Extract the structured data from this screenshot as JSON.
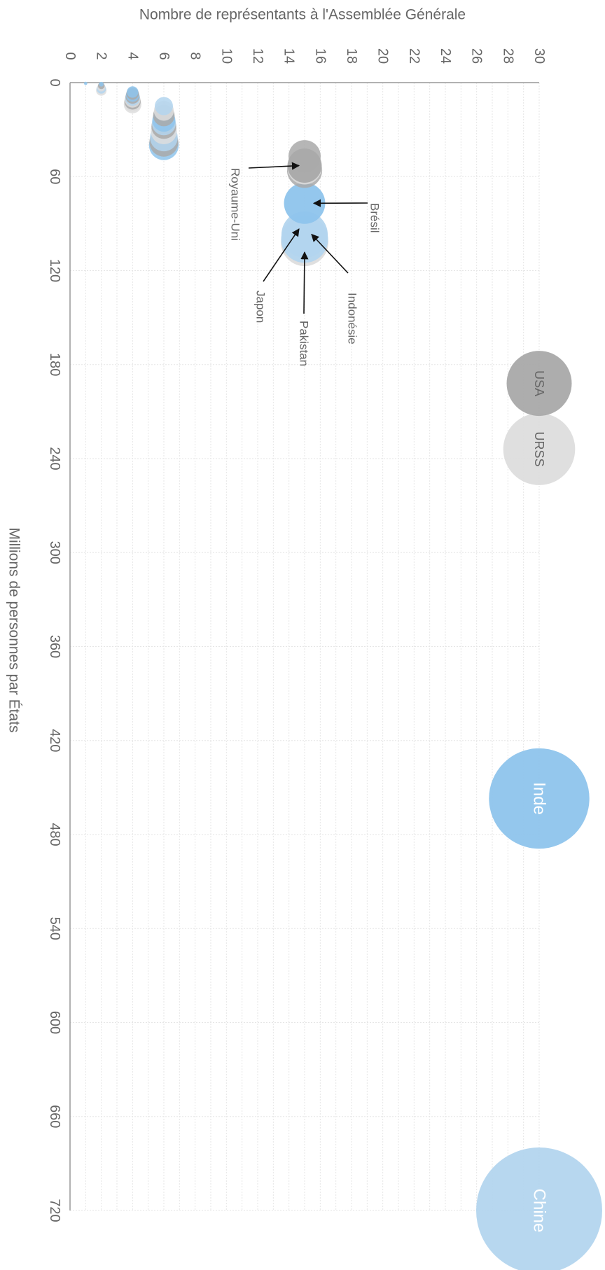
{
  "chart_data": {
    "type": "scatter",
    "orientation": "rotated-90-clockwise",
    "x_label": "Nombre de représentants à l'Assemblée Générale",
    "y_label": "Millions de personnes par États",
    "x_range": [
      0,
      30
    ],
    "y_range": [
      0,
      720
    ],
    "x_ticks": [
      "0",
      "2",
      "4",
      "6",
      "8",
      "10",
      "12",
      "14",
      "16",
      "18",
      "20",
      "22",
      "24",
      "26",
      "28",
      "30"
    ],
    "y_ticks": [
      "0",
      "60",
      "120",
      "180",
      "240",
      "300",
      "360",
      "420",
      "480",
      "540",
      "600",
      "660",
      "720"
    ],
    "grid": true,
    "colors": {
      "blue": "#8ec4ec",
      "light_blue": "#b3d5ee",
      "dark_grey": "#a9a9a9",
      "light_grey": "#dddddd",
      "grid": "#e6e6e6",
      "axis": "#999999"
    },
    "labeled_points": [
      {
        "label": "Chine",
        "representatives": 30,
        "population_millions": 720,
        "color": "light_blue"
      },
      {
        "label": "Inde",
        "representatives": 30,
        "population_millions": 457,
        "color": "blue"
      },
      {
        "label": "URSS",
        "representatives": 30,
        "population_millions": 234,
        "color": "light_grey"
      },
      {
        "label": "USA",
        "representatives": 30,
        "population_millions": 192,
        "color": "dark_grey"
      },
      {
        "label": "Indonésie",
        "representatives": 15,
        "population_millions": 100,
        "color": "light_blue"
      },
      {
        "label": "Pakistan",
        "representatives": 15,
        "population_millions": 102,
        "color": "light_grey"
      },
      {
        "label": "Japon",
        "representatives": 15,
        "population_millions": 97,
        "color": "light_blue"
      },
      {
        "label": "Brésil",
        "representatives": 15,
        "population_millions": 77,
        "color": "blue"
      },
      {
        "label": "Royaume-Uni",
        "representatives": 15,
        "population_millions": 53,
        "color": "dark_grey"
      }
    ],
    "other_points": [
      {
        "representatives": 15,
        "population_millions": 47,
        "color": "dark_grey"
      },
      {
        "representatives": 15,
        "population_millions": 54,
        "color": "light_grey"
      },
      {
        "representatives": 15,
        "population_millions": 56,
        "color": "dark_grey"
      },
      {
        "representatives": 6,
        "population_millions": 15,
        "color": "light_blue"
      },
      {
        "representatives": 6,
        "population_millions": 18,
        "color": "light_grey"
      },
      {
        "representatives": 6,
        "population_millions": 21,
        "color": "dark_grey"
      },
      {
        "representatives": 6,
        "population_millions": 24,
        "color": "blue"
      },
      {
        "representatives": 6,
        "population_millions": 26,
        "color": "light_blue"
      },
      {
        "representatives": 6,
        "population_millions": 28,
        "color": "dark_grey"
      },
      {
        "representatives": 6,
        "population_millions": 31,
        "color": "light_grey"
      },
      {
        "representatives": 6,
        "population_millions": 35,
        "color": "light_blue"
      },
      {
        "representatives": 6,
        "population_millions": 38,
        "color": "dark_grey"
      },
      {
        "representatives": 6,
        "population_millions": 40,
        "color": "blue"
      },
      {
        "representatives": 4,
        "population_millions": 6,
        "color": "blue"
      },
      {
        "representatives": 4,
        "population_millions": 7,
        "color": "dark_grey"
      },
      {
        "representatives": 4,
        "population_millions": 8,
        "color": "blue"
      },
      {
        "representatives": 4,
        "population_millions": 9,
        "color": "dark_grey"
      },
      {
        "representatives": 4,
        "population_millions": 10,
        "color": "light_blue"
      },
      {
        "representatives": 4,
        "population_millions": 11,
        "color": "light_grey"
      },
      {
        "representatives": 4,
        "population_millions": 12,
        "color": "dark_grey"
      },
      {
        "representatives": 4,
        "population_millions": 13,
        "color": "light_grey"
      },
      {
        "representatives": 4,
        "population_millions": 14,
        "color": "light_grey"
      },
      {
        "representatives": 2,
        "population_millions": 1,
        "color": "blue"
      },
      {
        "representatives": 2,
        "population_millions": 2,
        "color": "dark_grey"
      },
      {
        "representatives": 2,
        "population_millions": 3,
        "color": "light_grey"
      },
      {
        "representatives": 2,
        "population_millions": 4,
        "color": "light_blue"
      },
      {
        "representatives": 2,
        "population_millions": 5,
        "color": "light_grey"
      },
      {
        "representatives": 1,
        "population_millions": 0.5,
        "color": "blue"
      }
    ]
  }
}
